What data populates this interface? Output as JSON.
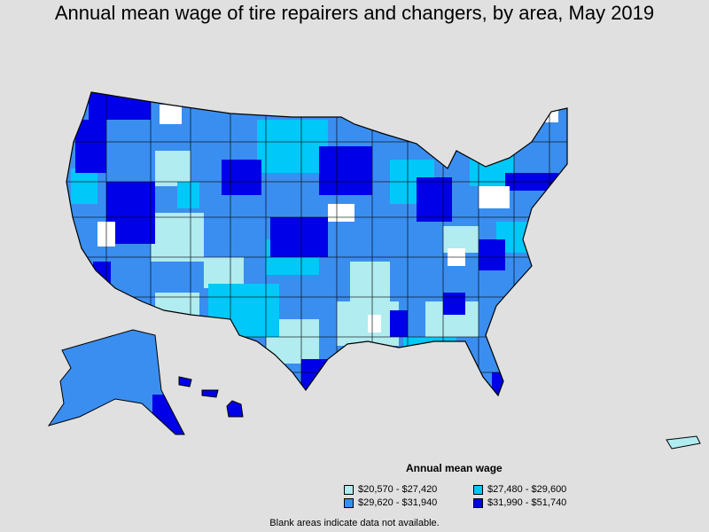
{
  "title": "Annual mean wage of tire repairers and changers, by area, May 2019",
  "legend": {
    "title": "Annual mean wage",
    "items": [
      {
        "label": "$20,570 - $27,420",
        "color": "#b0ecf0"
      },
      {
        "label": "$29,620 - $31,940",
        "color": "#3a8ef0"
      },
      {
        "label": "$27,480 - $29,600",
        "color": "#00c8f8"
      },
      {
        "label": "$31,990 - $51,740",
        "color": "#0000e8"
      }
    ]
  },
  "footnote": "Blank areas indicate data not available.",
  "colors": {
    "background": "#e0e0e0",
    "no_data": "#ffffff",
    "border": "#000000"
  }
}
